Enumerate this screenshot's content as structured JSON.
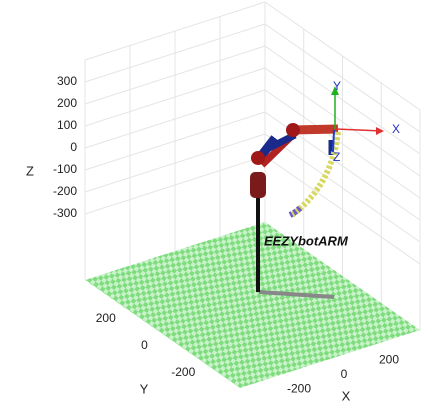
{
  "chart_data": {
    "type": "plot3d",
    "xlabel": "X",
    "ylabel": "Y",
    "zlabel": "Z",
    "xlim": [
      -400,
      400
    ],
    "ylim": [
      -400,
      400
    ],
    "zlim": [
      -600,
      400
    ],
    "xticks": [
      -200,
      0,
      200
    ],
    "yticks": [
      -200,
      0,
      200
    ],
    "zticks": [
      -300,
      -200,
      -100,
      0,
      100,
      200,
      300
    ],
    "grid": true,
    "annotation": "EEZYbotARM",
    "frame_labels": [
      "X",
      "Y",
      "Z"
    ]
  }
}
